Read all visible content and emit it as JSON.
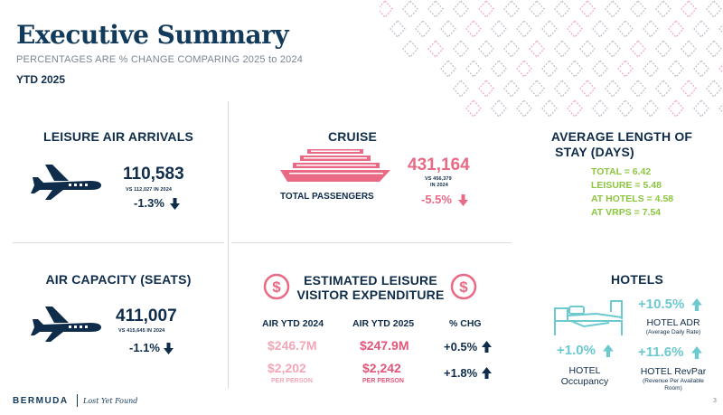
{
  "header": {
    "title": "Executive Summary",
    "subtitle": "PERCENTAGES ARE % CHANGE COMPARING 2025 to 2024",
    "period": "YTD 2025"
  },
  "leisure_air": {
    "title": "LEISURE AIR ARRIVALS",
    "value": "110,583",
    "vs": "VS 112,027 IN 2024",
    "change": "-1.3%",
    "icon": "airplane-icon"
  },
  "cruise": {
    "title": "CRUISE",
    "label": "TOTAL PASSENGERS",
    "value": "431,164",
    "vs_line1": "VS 456,379",
    "vs_line2": "IN 2024",
    "change": "-5.5%",
    "icon": "cruise-ship-icon"
  },
  "stay": {
    "title_line1": "AVERAGE LENGTH OF",
    "title_line2": "STAY (DAYS)",
    "lines": [
      "TOTAL = 6.42",
      "LEISURE = 5.48",
      "AT HOTELS = 4.58",
      "AT VRPS = 7.54"
    ]
  },
  "air_capacity": {
    "title": "AIR CAPACITY (SEATS)",
    "value": "411,007",
    "vs": "VS 415,645 IN 2024",
    "change": "-1.1%",
    "icon": "airplane-icon"
  },
  "expenditure": {
    "title_line1": "ESTIMATED LEISURE",
    "title_line2": "VISITOR EXPENDITURE",
    "col1_head": "AIR YTD 2024",
    "col2_head": "AIR YTD 2025",
    "col3_head": "% CHG",
    "total_2024": "$246.7M",
    "total_2025": "$247.9M",
    "total_chg": "+0.5%",
    "pp_2024": "$2,202",
    "pp_2025": "$2,242",
    "pp_chg": "+1.8%",
    "per_person": "PER PERSON",
    "icon": "dollar-icon"
  },
  "hotels": {
    "title": "HOTELS",
    "adr_value": "+10.5%",
    "adr_label": "HOTEL ADR",
    "adr_sub": "(Average Daily Rate)",
    "occ_value": "+1.0%",
    "occ_label1": "HOTEL",
    "occ_label2": "Occupancy",
    "revpar_value": "+11.6%",
    "revpar_label": "HOTEL RevPar",
    "revpar_sub1": "(Revenue Per Available",
    "revpar_sub2": "Room)",
    "icon": "bed-icon"
  },
  "footer": {
    "brand": "BERMUDA",
    "tagline": "Lost Yet Found",
    "page": "3"
  },
  "colors": {
    "navy": "#0f2d4a",
    "pink": "#e86a85",
    "green": "#8cc63f",
    "teal": "#6cc9cf"
  }
}
